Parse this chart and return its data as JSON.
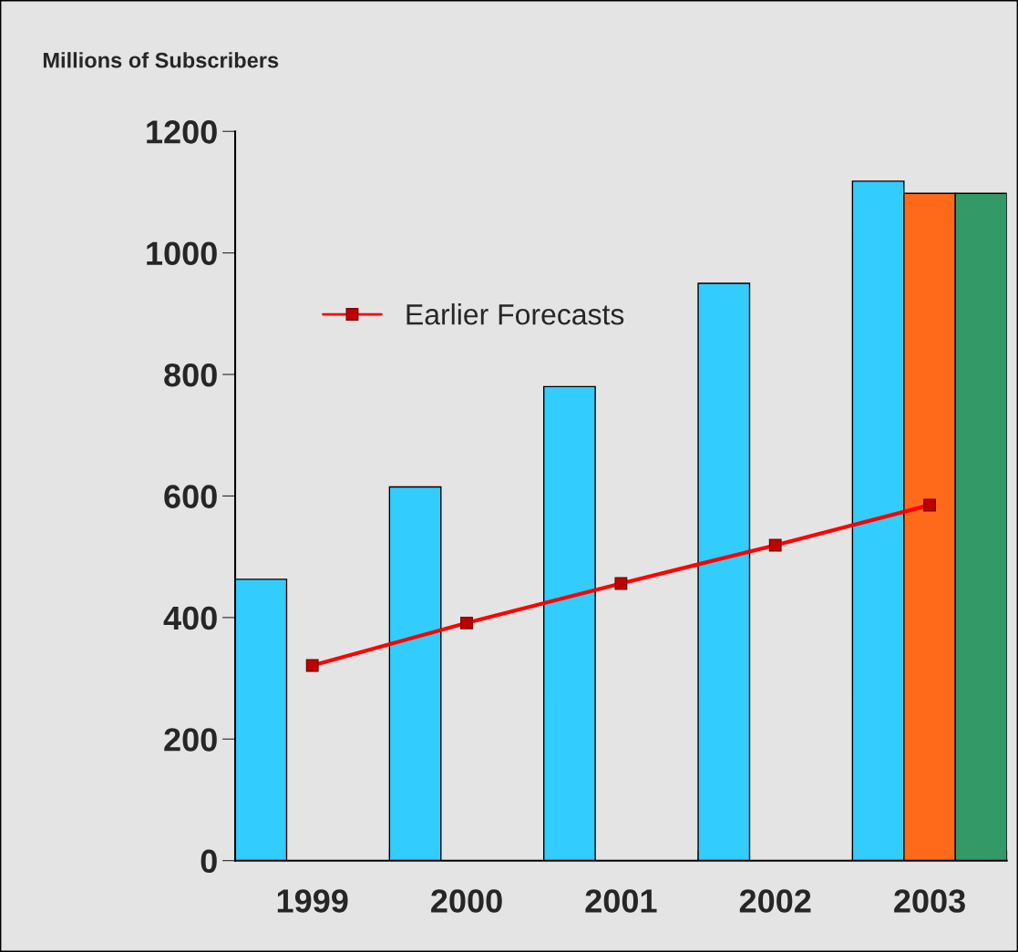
{
  "chart_data": {
    "type": "bar",
    "ylabel": "Millions of Subscribers",
    "categories": [
      "1999",
      "2000",
      "2001",
      "2002",
      "2003"
    ],
    "series": [
      {
        "color": "#33ccff",
        "values": [
          463,
          615,
          780,
          950,
          1118
        ]
      },
      {
        "color": "#ff6a1a",
        "values": [
          null,
          null,
          null,
          null,
          1098
        ]
      },
      {
        "color": "#339966",
        "values": [
          null,
          null,
          null,
          null,
          1098
        ]
      },
      {
        "name": "Earlier Forecasts",
        "type": "line",
        "color": "#ff0000",
        "values": [
          321,
          391,
          456,
          519,
          585
        ]
      }
    ],
    "ylim": [
      0,
      1200
    ],
    "yticks": [
      0,
      200,
      400,
      600,
      800,
      1000,
      1200
    ],
    "grid": false,
    "legend": "top left",
    "marker": "square",
    "line_style": "solid"
  }
}
